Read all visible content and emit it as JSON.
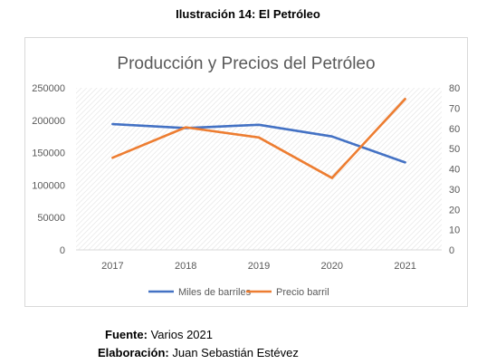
{
  "figure_caption": "Ilustración 14: El Petróleo",
  "source": {
    "label": "Fuente:",
    "value": "Varios 2021"
  },
  "elaboration": {
    "label": "Elaboración:",
    "value": "Juan Sebastián Estévez"
  },
  "chart_data": {
    "type": "line",
    "title": "Producción y Precios del Petróleo",
    "categories": [
      "2017",
      "2018",
      "2019",
      "2020",
      "2021"
    ],
    "y_left": {
      "ticks": [
        "0",
        "50000",
        "100000",
        "150000",
        "200000",
        "250000"
      ],
      "ylim": [
        0,
        250000
      ]
    },
    "y_right": {
      "ticks": [
        "0",
        "10",
        "20",
        "30",
        "40",
        "50",
        "60",
        "70",
        "80"
      ],
      "ylim": [
        0,
        80
      ]
    },
    "grid": "pattern",
    "legend": "bottom",
    "series": [
      {
        "name": "Miles de barriles",
        "axis": "left",
        "color": "#4472c4",
        "values": [
          194000,
          188000,
          193000,
          175000,
          135000
        ]
      },
      {
        "name": "Precio barril",
        "axis": "right",
        "color": "#ed7d31",
        "values": [
          45.5,
          60.5,
          55.5,
          35.5,
          74.5
        ]
      }
    ]
  }
}
